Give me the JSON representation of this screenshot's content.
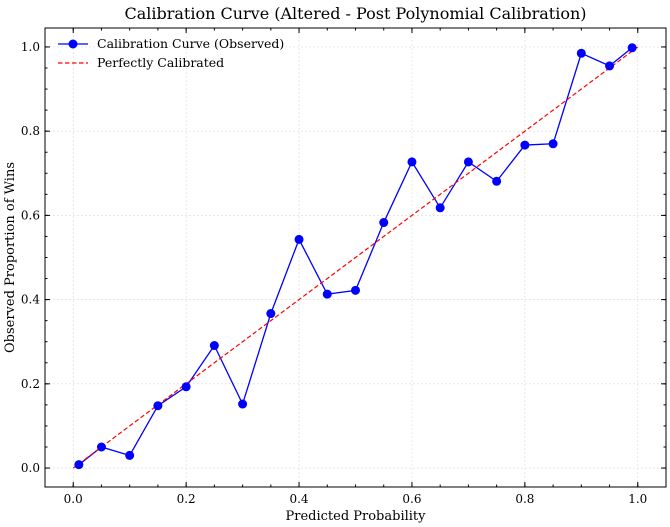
{
  "chart_data": {
    "type": "line",
    "title": "Calibration Curve (Altered - Post Polynomial Calibration)",
    "xlabel": "Predicted Probability",
    "ylabel": "Observed Proportion of Wins",
    "xlim": [
      -0.05,
      1.05
    ],
    "ylim": [
      -0.045,
      1.045
    ],
    "xticks": [
      "0.0",
      "0.2",
      "0.4",
      "0.6",
      "0.8",
      "1.0"
    ],
    "yticks": [
      "0.0",
      "0.2",
      "0.4",
      "0.6",
      "0.8",
      "1.0"
    ],
    "grid": true,
    "legend_position": "top-left",
    "series": [
      {
        "name": "Calibration Curve (Observed)",
        "style": "line-with-circle-markers",
        "color": "#0000ff",
        "x": [
          0.01,
          0.05,
          0.1,
          0.15,
          0.2,
          0.25,
          0.3,
          0.35,
          0.4,
          0.45,
          0.5,
          0.55,
          0.6,
          0.65,
          0.7,
          0.75,
          0.8,
          0.85,
          0.9,
          0.95,
          0.99
        ],
        "y": [
          0.008,
          0.05,
          0.03,
          0.148,
          0.193,
          0.291,
          0.152,
          0.367,
          0.543,
          0.413,
          0.422,
          0.583,
          0.727,
          0.618,
          0.727,
          0.681,
          0.767,
          0.77,
          0.985,
          0.955,
          0.998
        ]
      },
      {
        "name": "Perfectly Calibrated",
        "style": "dashed-line",
        "color": "#ff0000",
        "x": [
          0.0,
          1.0
        ],
        "y": [
          0.0,
          1.0
        ]
      }
    ]
  }
}
